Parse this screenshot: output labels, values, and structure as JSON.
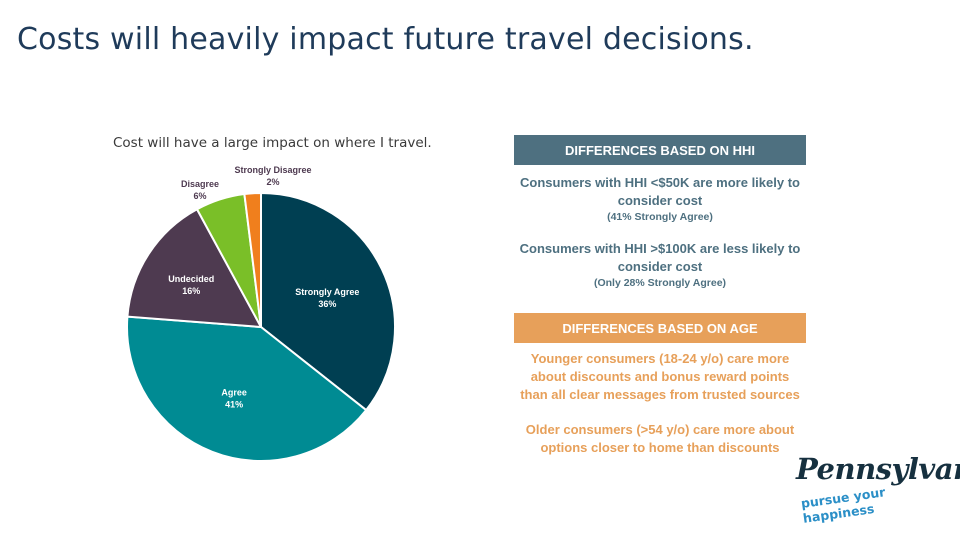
{
  "slide": {
    "title": "Costs will heavily impact future travel decisions."
  },
  "chart_data": {
    "type": "pie",
    "title": "Cost will have a large impact on where I travel.",
    "slices": [
      {
        "label": "Strongly Agree",
        "value": 36,
        "value_label": "36%",
        "color": "#003f52"
      },
      {
        "label": "Agree",
        "value": 41,
        "value_label": "41%",
        "color": "#008b93"
      },
      {
        "label": "Undecided",
        "value": 16,
        "value_label": "16%",
        "color": "#4e3a50"
      },
      {
        "label": "Disagree",
        "value": 6,
        "value_label": "6%",
        "color": "#7abf28"
      },
      {
        "label": "Strongly Disagree",
        "value": 2,
        "value_label": "2%",
        "color": "#f07f1d"
      }
    ]
  },
  "hhi_panel": {
    "header": "DIFFERENCES BASED ON HHI",
    "point1_main": "Consumers with HHI <$50K are more likely to consider cost",
    "point1_sub": "(41% Strongly Agree)",
    "point2_main": "Consumers with HHI >$100K are less likely to consider cost",
    "point2_sub": "(Only 28% Strongly Agree)"
  },
  "age_panel": {
    "header": "DIFFERENCES BASED ON AGE",
    "point1": "Younger consumers (18-24 y/o) care more about discounts and bonus reward points than all clear messages from trusted sources",
    "point2": "Older consumers (>54 y/o) care more about options closer to home than discounts"
  },
  "logo": {
    "wordmark": "Pennsylvania",
    "tagline": "pursue your happiness"
  }
}
